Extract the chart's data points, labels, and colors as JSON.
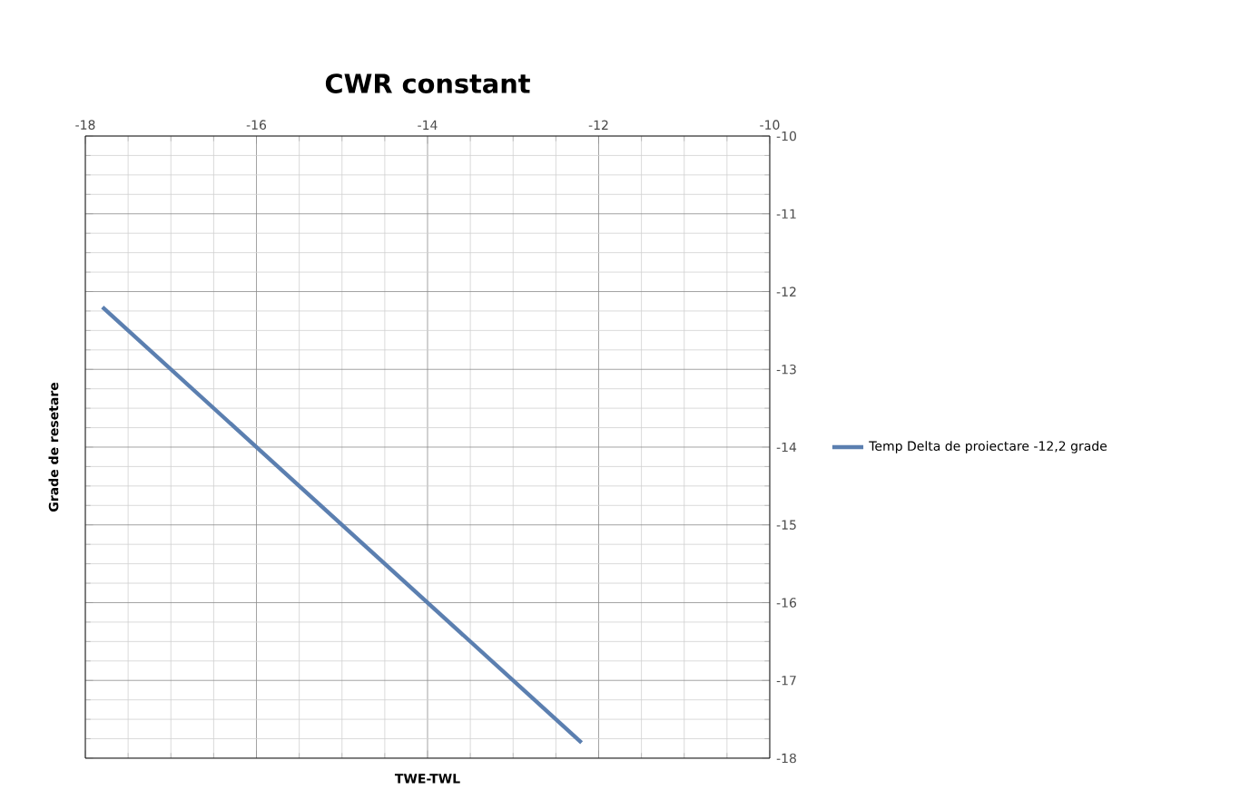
{
  "chart_data": {
    "type": "line",
    "title": "CWR constant",
    "xlabel": "TWE-TWL",
    "ylabel": "Grade de resetare",
    "x": [
      -17.8,
      -12.2
    ],
    "series": [
      {
        "name": "Temp Delta de proiectare -12,2 grade",
        "color": "#5b7fb0",
        "values": [
          -12.2,
          -17.8
        ]
      }
    ],
    "xlim": [
      -18,
      -10
    ],
    "ylim": [
      -18,
      -10
    ],
    "xticks": [
      -18,
      -16,
      -14,
      -12,
      -10
    ],
    "yticks": [
      -18,
      -17,
      -16,
      -15,
      -14,
      -13,
      -12,
      -11,
      -10
    ],
    "grid": true,
    "legend": "right",
    "marker": "none",
    "line_style": "solid"
  }
}
